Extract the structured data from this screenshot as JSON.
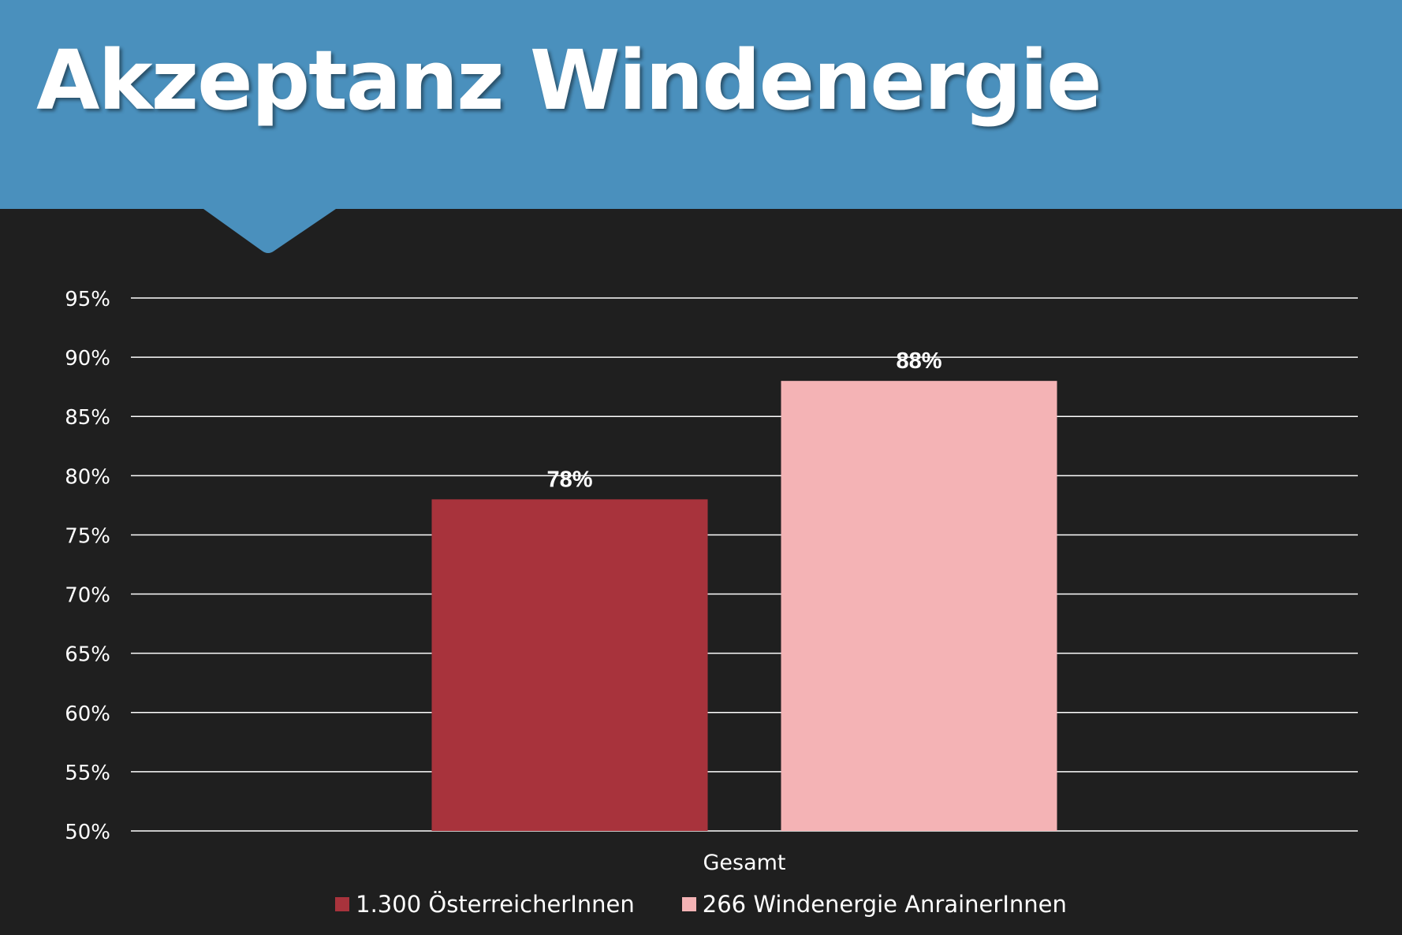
{
  "slide": {
    "title": "Akzeptanz Windenergie",
    "header_color": "#4a90bd",
    "background_color": "#1f1f1f"
  },
  "chart_data": {
    "type": "bar",
    "categories": [
      "Gesamt"
    ],
    "series": [
      {
        "name": "1.300 ÖsterreicherInnen",
        "values": [
          78
        ],
        "color": "#a8333c",
        "label": "78%"
      },
      {
        "name": "266 Windenergie AnrainerInnen",
        "values": [
          88
        ],
        "color": "#f4b3b5",
        "label": "88%"
      }
    ],
    "ylim": [
      50,
      95
    ],
    "yticks": [
      50,
      55,
      60,
      65,
      70,
      75,
      80,
      85,
      90,
      95
    ],
    "ytick_labels": [
      "50%",
      "55%",
      "60%",
      "65%",
      "70%",
      "75%",
      "80%",
      "85%",
      "90%",
      "95%"
    ],
    "grid": true,
    "title": "",
    "xlabel": "",
    "ylabel": "",
    "legend_position": "bottom"
  }
}
